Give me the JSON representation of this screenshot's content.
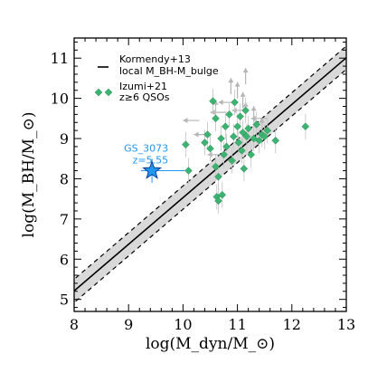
{
  "chart_data": {
    "type": "scatter",
    "title": "",
    "xlabel": "log(M_dyn/M_⊙)",
    "ylabel": "log(M_BH/M_⊙)",
    "xlim": [
      8,
      13
    ],
    "ylim": [
      4.7,
      11.5
    ],
    "xticks": [
      "8",
      "9",
      "10",
      "11",
      "12",
      "13"
    ],
    "yticks": [
      "5",
      "6",
      "7",
      "8",
      "9",
      "10",
      "11"
    ],
    "relation": {
      "name": "Kormendy+13 local M_BH-M_bulge",
      "slope": 1.16,
      "intercept_at_11": 8.69,
      "scatter_band": 0.29,
      "dashed_offset": 0.29
    },
    "legend": {
      "line_label_1": "Kormendy+13",
      "line_label_2": "local M_BH-M_bulge",
      "marker_label_1": "Izumi+21",
      "marker_label_2": "z≥6 QSOs",
      "position": "top-left"
    },
    "highlight": {
      "name_label": "GS_3073",
      "redshift_label": "z=5.55",
      "x": 9.43,
      "y": 8.2,
      "xerr_minus": 0.2,
      "xerr_plus": 0.6,
      "yerr_minus": 0.3,
      "yerr_plus": 0.3,
      "color": "#2196f3"
    },
    "series": [
      {
        "name": "Izumi+21 z≥6 QSOs",
        "marker": "diamond",
        "color": "#3cb371",
        "points": [
          {
            "x": 10.05,
            "y": 8.85
          },
          {
            "x": 10.1,
            "y": 8.2
          },
          {
            "x": 10.4,
            "y": 8.9
          },
          {
            "x": 10.45,
            "y": 9.1
          },
          {
            "x": 10.5,
            "y": 8.75
          },
          {
            "x": 10.55,
            "y": 9.93
          },
          {
            "x": 10.6,
            "y": 9.5
          },
          {
            "x": 10.6,
            "y": 8.3
          },
          {
            "x": 10.62,
            "y": 7.55
          },
          {
            "x": 10.65,
            "y": 7.45
          },
          {
            "x": 10.65,
            "y": 8.05
          },
          {
            "x": 10.7,
            "y": 9.0
          },
          {
            "x": 10.72,
            "y": 7.6
          },
          {
            "x": 10.75,
            "y": 8.6
          },
          {
            "x": 10.78,
            "y": 9.3
          },
          {
            "x": 10.8,
            "y": 8.8
          },
          {
            "x": 10.85,
            "y": 9.6
          },
          {
            "x": 10.9,
            "y": 8.45
          },
          {
            "x": 10.93,
            "y": 9.05
          },
          {
            "x": 10.95,
            "y": 9.9
          },
          {
            "x": 11.0,
            "y": 9.3
          },
          {
            "x": 11.02,
            "y": 8.9
          },
          {
            "x": 11.05,
            "y": 9.55
          },
          {
            "x": 11.08,
            "y": 8.7
          },
          {
            "x": 11.1,
            "y": 9.15
          },
          {
            "x": 11.12,
            "y": 8.25
          },
          {
            "x": 11.15,
            "y": 9.7
          },
          {
            "x": 11.17,
            "y": 9.05
          },
          {
            "x": 11.2,
            "y": 9.25
          },
          {
            "x": 11.25,
            "y": 8.6
          },
          {
            "x": 11.3,
            "y": 9.0
          },
          {
            "x": 11.35,
            "y": 9.35
          },
          {
            "x": 11.4,
            "y": 8.95
          },
          {
            "x": 11.45,
            "y": 9.1
          },
          {
            "x": 11.5,
            "y": 9.05
          },
          {
            "x": 11.55,
            "y": 9.2
          },
          {
            "x": 11.7,
            "y": 8.95
          },
          {
            "x": 12.25,
            "y": 9.3
          }
        ]
      }
    ],
    "arrows": [
      {
        "x": 10.3,
        "y": 9.45,
        "dir": "left"
      },
      {
        "x": 10.5,
        "y": 9.1,
        "dir": "left"
      },
      {
        "x": 10.6,
        "y": 9.55,
        "dir": "up"
      },
      {
        "x": 10.75,
        "y": 8.6,
        "dir": "left"
      },
      {
        "x": 10.8,
        "y": 9.65,
        "dir": "left"
      },
      {
        "x": 10.88,
        "y": 10.1,
        "dir": "up"
      },
      {
        "x": 10.95,
        "y": 9.9,
        "dir": "left"
      },
      {
        "x": 11.0,
        "y": 10.0,
        "dir": "up"
      },
      {
        "x": 11.1,
        "y": 9.75,
        "dir": "up"
      },
      {
        "x": 11.15,
        "y": 9.5,
        "dir": "up"
      },
      {
        "x": 11.2,
        "y": 9.7,
        "dir": "left"
      },
      {
        "x": 11.3,
        "y": 9.4,
        "dir": "up"
      },
      {
        "x": 11.45,
        "y": 9.1,
        "dir": "up"
      },
      {
        "x": 11.55,
        "y": 9.5,
        "dir": "left"
      },
      {
        "x": 11.15,
        "y": 10.35,
        "dir": "up"
      }
    ],
    "grid": false
  }
}
